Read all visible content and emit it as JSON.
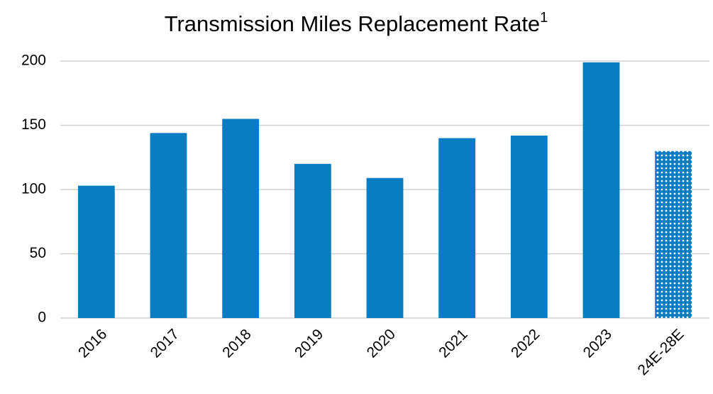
{
  "chart_data": {
    "type": "bar",
    "title": "Transmission Miles Replacement Rate",
    "title_superscript": "1",
    "categories": [
      "2016",
      "2017",
      "2018",
      "2019",
      "2020",
      "2021",
      "2022",
      "2023",
      "24E-28E"
    ],
    "values": [
      103,
      144,
      155,
      120,
      109,
      140,
      142,
      199,
      130
    ],
    "patterns": [
      "solid",
      "solid",
      "solid",
      "solid",
      "solid",
      "solid",
      "solid",
      "solid",
      "dotted"
    ],
    "color": "#0a7cc1",
    "ylim": [
      0,
      200
    ],
    "yticks": [
      0,
      50,
      100,
      150,
      200
    ],
    "grid": true
  }
}
